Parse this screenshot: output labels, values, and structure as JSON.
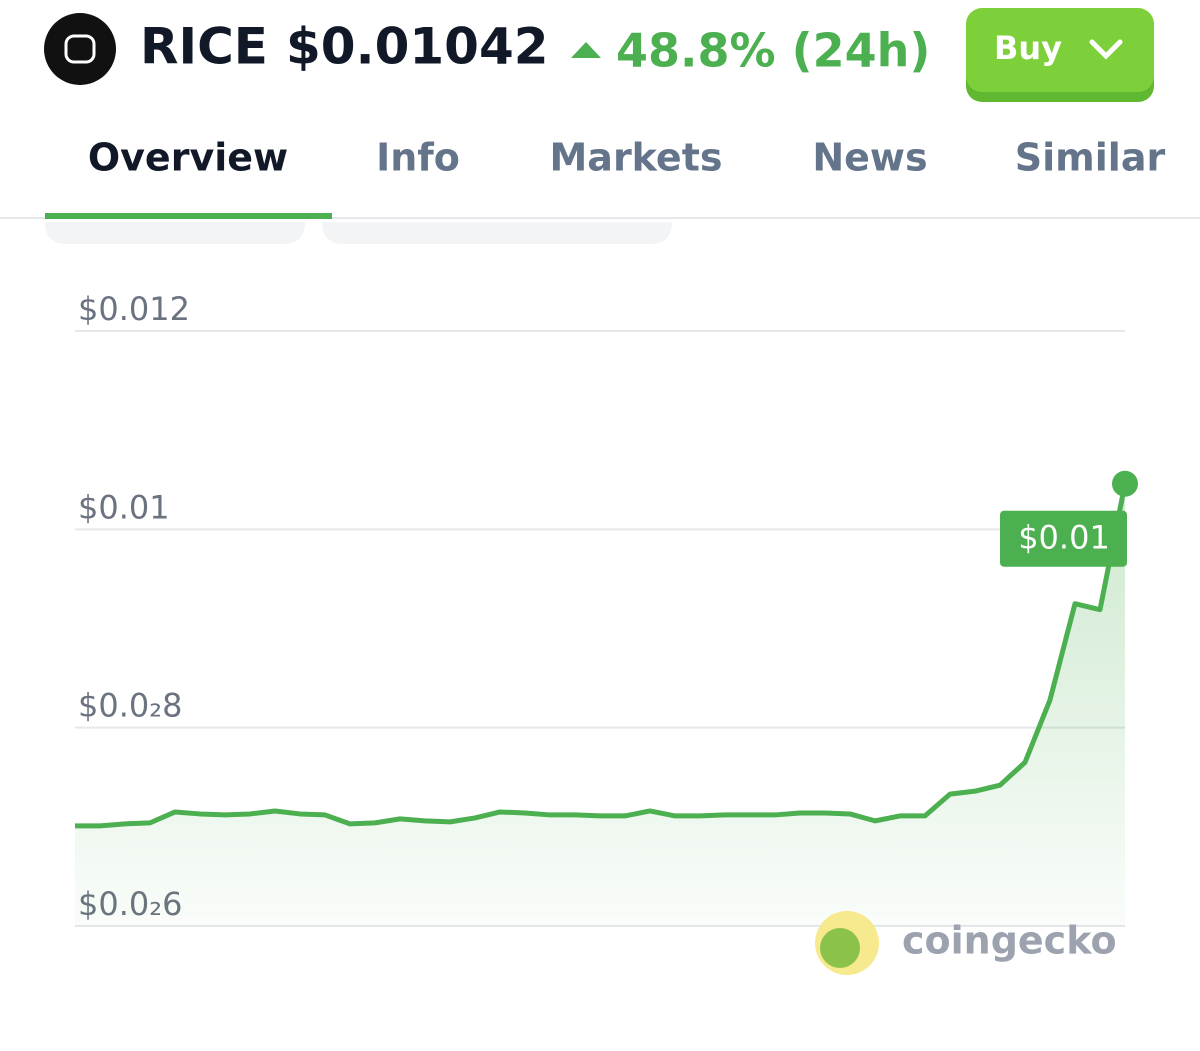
{
  "header": {
    "coin": "RICE",
    "price": "$0.01042",
    "change": "48.8% (24h)",
    "button": "Buy"
  },
  "tabs": [
    "Overview",
    "Info",
    "Markets",
    "News",
    "Similar"
  ],
  "watermark": "coingecko",
  "chart_data": {
    "type": "line",
    "series": [
      {
        "name": "RICE price",
        "color": "#4caf50",
        "values": [
          0.00701,
          0.00701,
          0.00703,
          0.00704,
          0.00715,
          0.00713,
          0.00712,
          0.00713,
          0.00716,
          0.00713,
          0.00712,
          0.00703,
          0.00704,
          0.00708,
          0.00706,
          0.00705,
          0.00709,
          0.00715,
          0.00714,
          0.00712,
          0.00712,
          0.00711,
          0.00711,
          0.00716,
          0.00711,
          0.00711,
          0.00712,
          0.00712,
          0.00712,
          0.00714,
          0.00714,
          0.00713,
          0.00706,
          0.00711,
          0.00711,
          0.00733,
          0.00736,
          0.00742,
          0.00765,
          0.00828,
          0.00925,
          0.00919,
          0.01046
        ]
      }
    ],
    "current_label": "$0.01",
    "ylim": [
      0.006,
      0.012
    ],
    "yticks": [
      {
        "value": 0.006,
        "label": "$0.0₂6"
      },
      {
        "value": 0.008,
        "label": "$0.0₂8"
      },
      {
        "value": 0.01,
        "label": "$0.01"
      },
      {
        "value": 0.012,
        "label": "$0.012"
      }
    ],
    "grid": true
  }
}
